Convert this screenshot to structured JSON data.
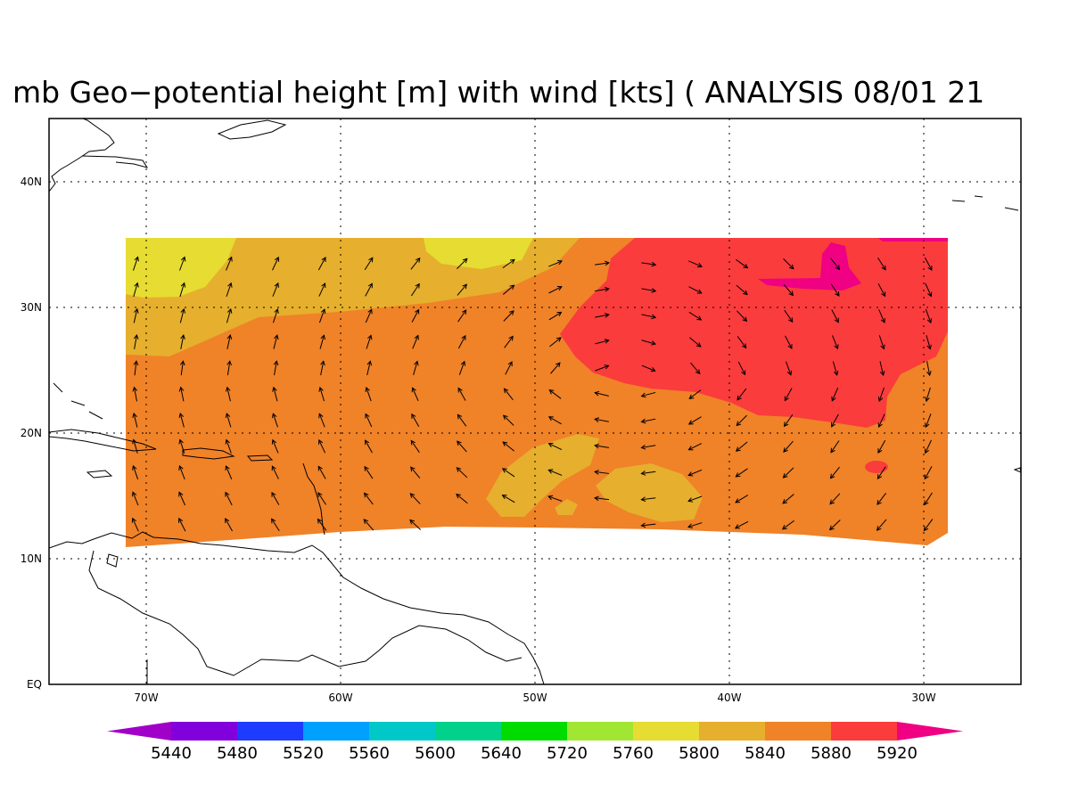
{
  "title": "mb Geo−potential height [m] with wind [kts] ( ANALYSIS 08/01 21",
  "map": {
    "lon_range": [
      -75,
      -25
    ],
    "lat_range": [
      0,
      45
    ],
    "lon_ticks": [
      "70W",
      "60W",
      "50W",
      "40W",
      "30W"
    ],
    "lat_ticks": [
      "EQ",
      "10N",
      "20N",
      "30N",
      "40N"
    ],
    "grid": "dotted",
    "field": "500 mb geopotential height (shaded) with wind vectors",
    "field_extent_lon": [
      -71,
      -28.7
    ],
    "field_extent_lat": [
      11,
      35.5
    ]
  },
  "colorbar": {
    "labels": [
      "5440",
      "5480",
      "5520",
      "5560",
      "5600",
      "5640",
      "5720",
      "5760",
      "5800",
      "5840",
      "5880",
      "5920"
    ],
    "colors": [
      "#a000c8",
      "#8200dc",
      "#1e3cff",
      "#00a0ff",
      "#00c8c8",
      "#00d28c",
      "#00dc00",
      "#a0e632",
      "#e6dc32",
      "#e6af2d",
      "#f08228",
      "#fa3c3c",
      "#f00082"
    ]
  },
  "palette": {
    "h5800": "#e6dc32",
    "h5840": "#e6af2d",
    "h5880": "#f08228",
    "h5920": "#fa3c3c",
    "h5960": "#f00082"
  }
}
